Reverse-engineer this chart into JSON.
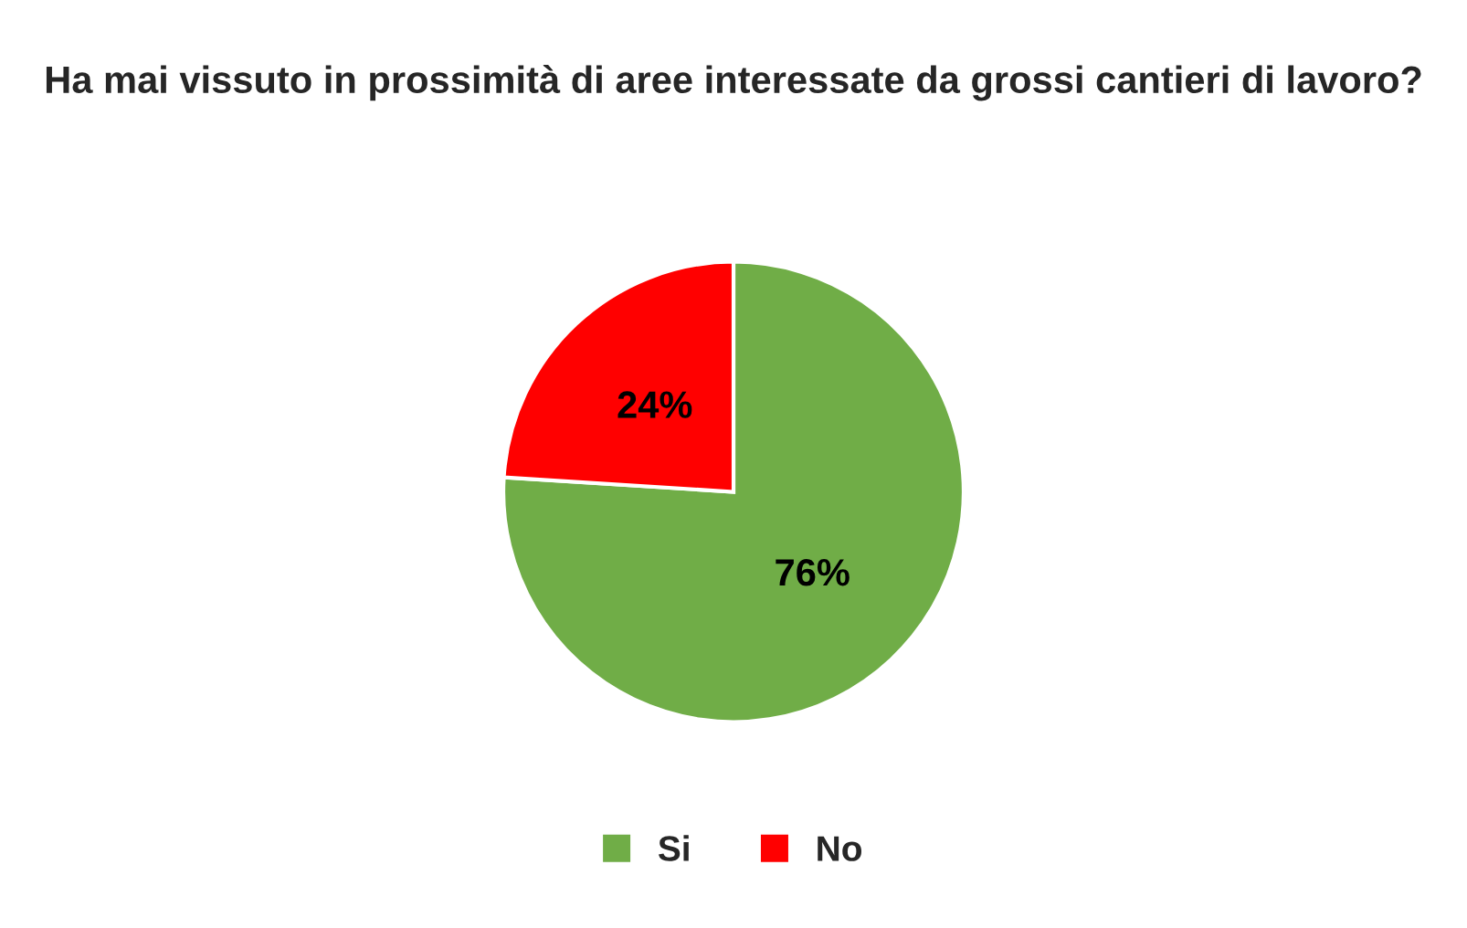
{
  "chart_data": {
    "type": "pie",
    "title": "Ha mai vissuto in prossimità di aree interessate da grossi cantieri di lavoro?",
    "categories": [
      "Si",
      "No"
    ],
    "values": [
      76,
      24
    ],
    "colors": [
      "#70ad47",
      "#ff0000"
    ],
    "value_labels": [
      "76%",
      "24%"
    ],
    "legend": "bottom"
  }
}
